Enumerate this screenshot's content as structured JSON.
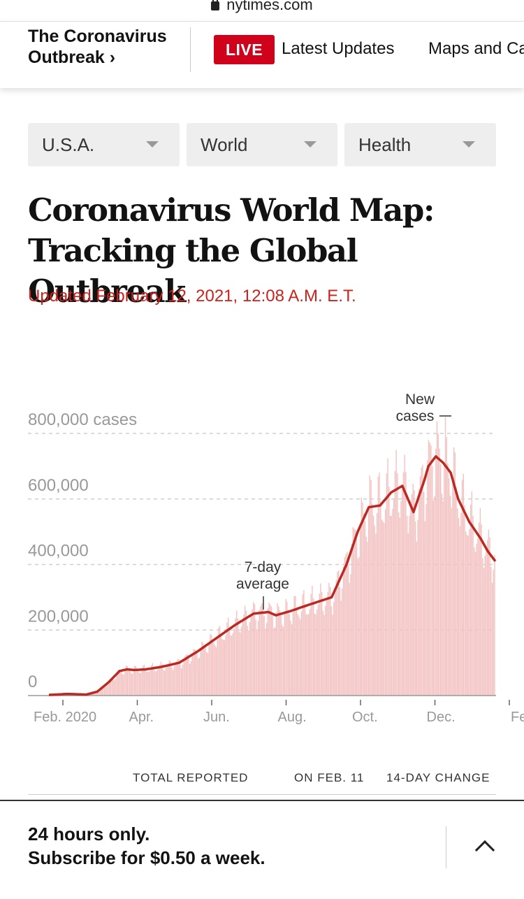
{
  "browser": {
    "url": "nytimes.com"
  },
  "nav": {
    "section_title": "The Coronavirus Outbreak ›",
    "live_label": "LIVE",
    "links": [
      "Latest Updates",
      "Maps and Cases"
    ]
  },
  "filters": [
    {
      "label": "U.S.A."
    },
    {
      "label": "World"
    },
    {
      "label": "Health"
    }
  ],
  "article": {
    "headline_line1": "Coronavirus World Map:",
    "headline_line2": "Tracking the Global Outbreak",
    "updated": "Updated February 12, 2021, 12:08 A.M. E.T."
  },
  "chart_data": {
    "type": "bar",
    "y_tick_labels": [
      "0",
      "200,000",
      "400,000",
      "600,000",
      "800,000 cases"
    ],
    "y_ticks": [
      0,
      200000,
      400000,
      600000,
      800000
    ],
    "x_tick_labels": [
      "Feb. 2020",
      "Apr.",
      "Jun.",
      "Aug.",
      "Oct.",
      "Dec.",
      "Feb."
    ],
    "ylim": [
      0,
      800000
    ],
    "grid": true,
    "annotations": [
      {
        "text_line1": "7-day",
        "text_line2": "average"
      },
      {
        "text_line1": "New",
        "text_line2": "cases"
      }
    ],
    "bar_color": "#f3c3c3",
    "line_color": "#bb2a22",
    "seven_day_average": {
      "x_months": [
        0,
        0.5,
        1,
        1.3,
        1.6,
        1.9,
        2.1,
        2.3,
        2.6,
        3,
        3.5,
        4,
        4.5,
        5,
        5.5,
        5.9,
        6.1,
        6.5,
        6.8,
        7.2,
        7.6,
        8,
        8.3,
        8.6,
        8.9,
        9.2,
        9.5,
        9.8,
        10.1,
        10.2,
        10.4,
        10.6,
        10.8,
        11,
        11.3,
        11.6,
        11.8,
        12
      ],
      "values": [
        2000,
        5000,
        3000,
        12000,
        40000,
        75000,
        80000,
        78000,
        80000,
        87000,
        100000,
        135000,
        175000,
        215000,
        250000,
        255000,
        245000,
        258000,
        270000,
        285000,
        300000,
        400000,
        500000,
        575000,
        580000,
        620000,
        640000,
        560000,
        660000,
        700000,
        730000,
        710000,
        680000,
        600000,
        530000,
        480000,
        440000,
        410000
      ]
    }
  },
  "table": {
    "columns": [
      "TOTAL REPORTED",
      "ON FEB. 11",
      "14-DAY CHANGE"
    ]
  },
  "subscribe": {
    "line1": "24 hours only.",
    "line2": "Subscribe for $0.50 a week."
  }
}
